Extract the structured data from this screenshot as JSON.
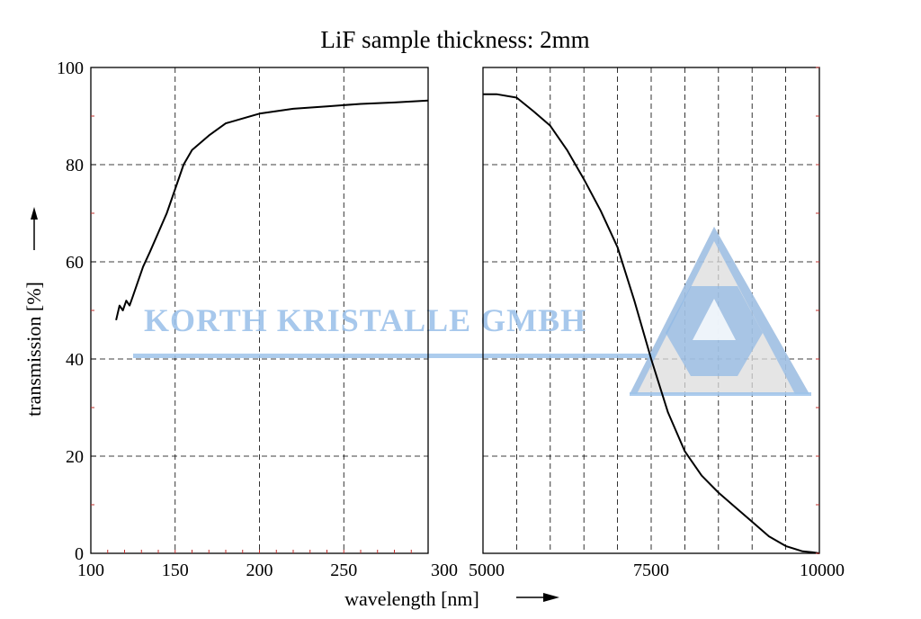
{
  "watermark": {
    "text": "KORTH KRISTALLE GMBH",
    "color": "#9ec3ea",
    "logo_fill": "#dcdcdc",
    "logo_color": "#8fb8e6"
  },
  "chart_data": {
    "type": "line",
    "title": "LiF sample thickness: 2mm",
    "xlabel": "wavelength [nm]",
    "ylabel": "transmission [%]",
    "ylim": [
      0,
      100
    ],
    "yticks": [
      0,
      20,
      40,
      60,
      80,
      100
    ],
    "y_tick_labels": [
      "0",
      "20",
      "40",
      "60",
      "80",
      "100"
    ],
    "grid": true,
    "broken_x_axis": true,
    "panels": [
      {
        "xlim": [
          100,
          300
        ],
        "xticks": [
          100,
          150,
          200,
          250,
          300
        ],
        "x_tick_labels": [
          "100",
          "150",
          "200",
          "250",
          "300"
        ],
        "series": [
          {
            "x": [
              115,
              117,
              119,
              121,
              123,
              125,
              128,
              131,
              135,
              140,
              145,
              150,
              155,
              160,
              170,
              180,
              190,
              200,
              220,
              240,
              260,
              280,
              300
            ],
            "y": [
              48,
              51,
              50,
              52,
              51,
              53,
              56,
              59,
              62,
              66,
              70,
              75,
              80,
              83,
              86,
              88.5,
              89.5,
              90.5,
              91.5,
              92,
              92.5,
              92.8,
              93.2
            ]
          }
        ]
      },
      {
        "xlim": [
          5000,
          10000
        ],
        "xticks": [
          5000,
          7500,
          10000
        ],
        "x_tick_labels": [
          "5000",
          "7500",
          "10000"
        ],
        "gridlines": [
          5500,
          6000,
          6500,
          7000,
          7500,
          8000,
          8500,
          9000,
          9500
        ],
        "series": [
          {
            "x": [
              5000,
              5200,
              5500,
              5750,
              6000,
              6250,
              6500,
              6750,
              7000,
              7250,
              7500,
              7750,
              8000,
              8250,
              8500,
              8750,
              9000,
              9250,
              9500,
              9750,
              9900,
              10000
            ],
            "y": [
              94.5,
              94.5,
              93.8,
              91,
              88,
              83,
              77,
              70.5,
              63,
              52,
              40,
              29,
              21,
              16,
              12.5,
              9.5,
              6.5,
              3.5,
              1.5,
              0.4,
              0.2,
              0
            ]
          }
        ]
      }
    ]
  }
}
